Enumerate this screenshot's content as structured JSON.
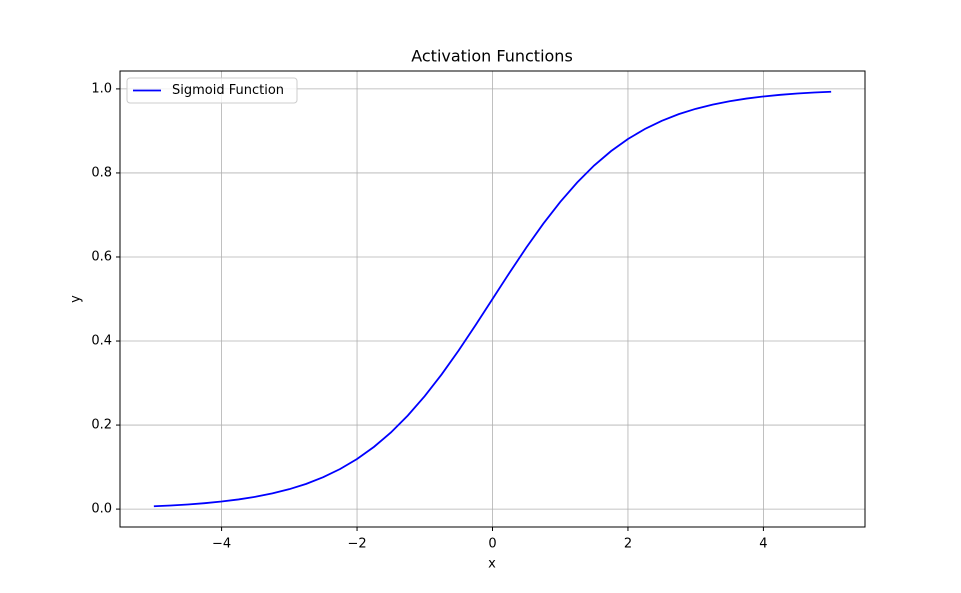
{
  "chart_data": {
    "type": "line",
    "title": "Activation Functions",
    "x_label": "x",
    "y_label": "y",
    "x": [
      -5,
      -4.75,
      -4.5,
      -4.25,
      -4,
      -3.75,
      -3.5,
      -3.25,
      -3,
      -2.75,
      -2.5,
      -2.25,
      -2,
      -1.75,
      -1.5,
      -1.25,
      -1,
      -0.75,
      -0.5,
      -0.25,
      0,
      0.25,
      0.5,
      0.75,
      1,
      1.25,
      1.5,
      1.75,
      2,
      2.25,
      2.5,
      2.75,
      3,
      3.25,
      3.5,
      3.75,
      4,
      4.25,
      4.5,
      4.75,
      5
    ],
    "series": [
      {
        "name": "Sigmoid Function",
        "color": "#0000ff",
        "values": [
          0.0067,
          0.0086,
          0.011,
          0.0141,
          0.018,
          0.023,
          0.0293,
          0.0373,
          0.0474,
          0.0601,
          0.0759,
          0.0954,
          0.1192,
          0.1481,
          0.1824,
          0.2227,
          0.2689,
          0.3208,
          0.3775,
          0.4378,
          0.5,
          0.5622,
          0.6225,
          0.6792,
          0.7311,
          0.7773,
          0.8176,
          0.8519,
          0.8808,
          0.9046,
          0.9241,
          0.9399,
          0.9526,
          0.9627,
          0.9707,
          0.977,
          0.982,
          0.9859,
          0.989,
          0.9914,
          0.9933
        ]
      }
    ],
    "xlim": [
      -5.5,
      5.5
    ],
    "ylim": [
      -0.0426,
      1.0426
    ],
    "xticks": [
      {
        "value": -4,
        "label": "−4"
      },
      {
        "value": -2,
        "label": "−2"
      },
      0,
      2,
      4
    ],
    "yticks": [
      {
        "value": 0,
        "label": "0.0"
      },
      0.2,
      0.4,
      0.6,
      0.8,
      {
        "value": 1,
        "label": "1.0"
      }
    ],
    "grid": true,
    "legend": "upper left"
  }
}
